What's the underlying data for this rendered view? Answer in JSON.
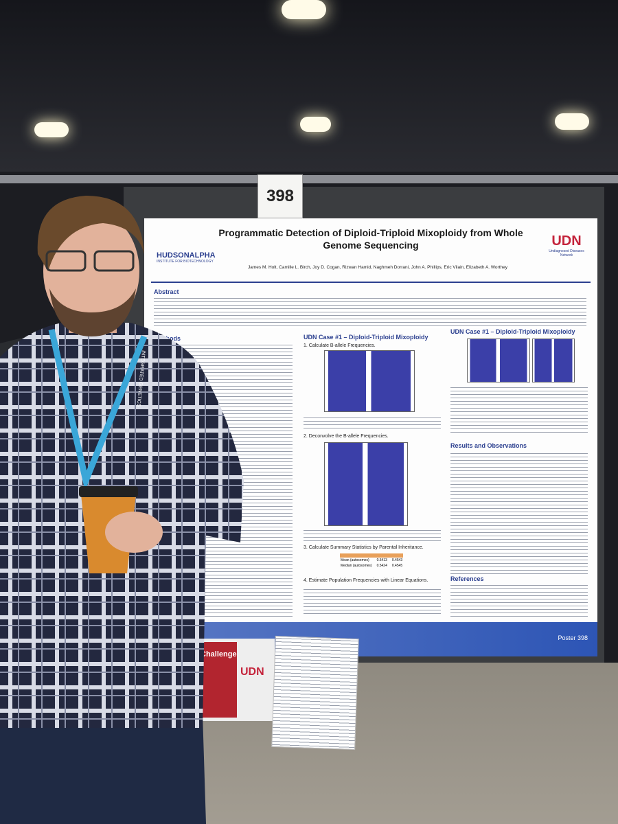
{
  "booth_number": "398",
  "poster": {
    "title": "Programmatic Detection of Diploid-Triploid Mixoploidy from Whole Genome Sequencing",
    "authors": "James M. Holt, Camille L. Birch, Joy D. Cogan, Rizwan Hamid, Naghmeh Dorrani, John A. Phillips, Eric Vilain, Elizabeth A. Worthey",
    "left_logo": {
      "name": "HUDSONALPHA",
      "sub": "INSTITUTE FOR BIOTECHNOLOGY"
    },
    "right_logo": {
      "name": "UDN",
      "sub": "Undiagnosed Diseases Network"
    },
    "sections": {
      "abstract": "Abstract",
      "methods": "Methods",
      "case_left": "UDN Case #1 – Diploid-Triploid Mixoploidy",
      "step1": "1. Calculate B-allele Frequencies.",
      "step2": "2. Deconvolve the B-allele Frequencies.",
      "step3": "3. Calculate Summary Statistics by Parental Inheritance.",
      "step4": "4. Estimate Population Frequencies with Linear Equations.",
      "case_right": "UDN Case #1 – Diploid-Triploid Mixoploidy",
      "results": "Results and Observations",
      "references": "References"
    },
    "footer": "Poster 398"
  },
  "table": {
    "rows": [
      [
        "Mean (autosomes)",
        "0.5413",
        "0.4543"
      ],
      [
        "Median (autosomes)",
        "0.5424",
        "0.4545"
      ]
    ]
  },
  "side_poster": {
    "title": "Challenge",
    "logo": "UDN"
  },
  "lanyard": "INTEGRATED GENETICS"
}
